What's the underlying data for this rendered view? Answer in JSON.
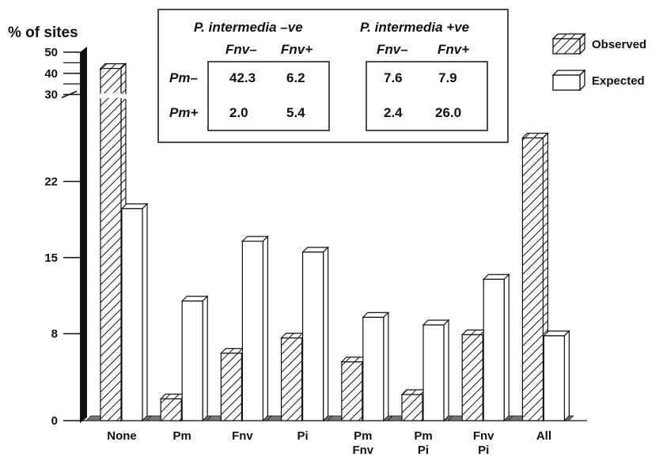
{
  "chart_data": {
    "type": "bar",
    "ylabel": "% of sites",
    "ytick_labels": [
      "0",
      "8",
      "15",
      "22",
      "30",
      "40",
      "50"
    ],
    "y_axis_break": true,
    "categories": [
      {
        "lines": [
          "None"
        ]
      },
      {
        "lines": [
          "Pm"
        ]
      },
      {
        "lines": [
          "Fnv"
        ]
      },
      {
        "lines": [
          "Pi"
        ]
      },
      {
        "lines": [
          "Pm",
          "Fnv"
        ]
      },
      {
        "lines": [
          "Pm",
          "Pi"
        ]
      },
      {
        "lines": [
          "Fnv",
          "Pi"
        ]
      },
      {
        "lines": [
          "All"
        ]
      }
    ],
    "series": [
      {
        "name": "Observed",
        "pattern": "hatched",
        "values": [
          42.3,
          2.0,
          6.2,
          7.6,
          5.4,
          2.4,
          7.9,
          26.0
        ]
      },
      {
        "name": "Expected",
        "pattern": "white",
        "values": [
          19.5,
          11.0,
          16.5,
          15.5,
          9.5,
          8.8,
          13.0,
          7.8
        ]
      }
    ],
    "legend_position": "top-right",
    "inset_table": {
      "groups": [
        {
          "title": "P. intermedia –ve",
          "columns": [
            "Fnv–",
            "Fnv+"
          ]
        },
        {
          "title": "P. intermedia +ve",
          "columns": [
            "Fnv–",
            "Fnv+"
          ]
        }
      ],
      "row_labels": [
        "Pm–",
        "Pm+"
      ],
      "rows": [
        [
          "42.3",
          "6.2",
          "7.6",
          "7.9"
        ],
        [
          "2.0",
          "5.4",
          "2.4",
          "26.0"
        ]
      ]
    }
  }
}
